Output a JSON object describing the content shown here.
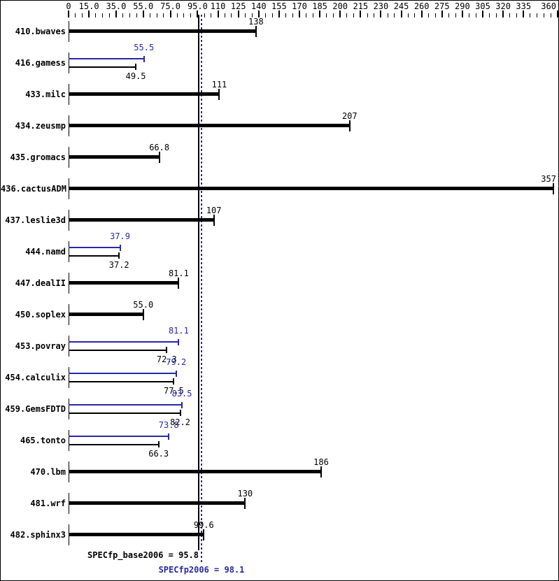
{
  "chart_data": {
    "type": "bar",
    "orientation": "horizontal",
    "legend_position": "none",
    "grid": false,
    "colors": {
      "base": "#000000",
      "peak": "#2828a8"
    },
    "x_axis": {
      "min": 0,
      "max": 360,
      "minor_step": 5,
      "labeled_ticks": [
        {
          "value": 0,
          "label": "0"
        },
        {
          "value": 15,
          "label": "15.0"
        },
        {
          "value": 35,
          "label": "35.0"
        },
        {
          "value": 55,
          "label": "55.0"
        },
        {
          "value": 75,
          "label": "75.0"
        },
        {
          "value": 95,
          "label": "95.0"
        },
        {
          "value": 110,
          "label": "110"
        },
        {
          "value": 125,
          "label": "125"
        },
        {
          "value": 140,
          "label": "140"
        },
        {
          "value": 155,
          "label": "155"
        },
        {
          "value": 170,
          "label": "170"
        },
        {
          "value": 185,
          "label": "185"
        },
        {
          "value": 200,
          "label": "200"
        },
        {
          "value": 215,
          "label": "215"
        },
        {
          "value": 230,
          "label": "230"
        },
        {
          "value": 245,
          "label": "245"
        },
        {
          "value": 260,
          "label": "260"
        },
        {
          "value": 275,
          "label": "275"
        },
        {
          "value": 290,
          "label": "290"
        },
        {
          "value": 305,
          "label": "305"
        },
        {
          "value": 320,
          "label": "320"
        },
        {
          "value": 335,
          "label": "335"
        },
        {
          "value": 360,
          "label": "360"
        }
      ]
    },
    "benchmarks": [
      {
        "name": "410.bwaves",
        "base": 138,
        "base_label": "138"
      },
      {
        "name": "416.gamess",
        "base": 49.5,
        "base_label": "49.5",
        "peak": 55.5,
        "peak_label": "55.5"
      },
      {
        "name": "433.milc",
        "base": 111,
        "base_label": "111"
      },
      {
        "name": "434.zeusmp",
        "base": 207,
        "base_label": "207"
      },
      {
        "name": "435.gromacs",
        "base": 66.8,
        "base_label": "66.8"
      },
      {
        "name": "436.cactusADM",
        "base": 357,
        "base_label": "357"
      },
      {
        "name": "437.leslie3d",
        "base": 107,
        "base_label": "107"
      },
      {
        "name": "444.namd",
        "base": 37.2,
        "base_label": "37.2",
        "peak": 37.9,
        "peak_label": "37.9"
      },
      {
        "name": "447.dealII",
        "base": 81.1,
        "base_label": "81.1"
      },
      {
        "name": "450.soplex",
        "base": 55.0,
        "base_label": "55.0"
      },
      {
        "name": "453.povray",
        "base": 72.3,
        "base_label": "72.3",
        "peak": 81.1,
        "peak_label": "81.1"
      },
      {
        "name": "454.calculix",
        "base": 77.5,
        "base_label": "77.5",
        "peak": 79.2,
        "peak_label": "79.2"
      },
      {
        "name": "459.GemsFDTD",
        "base": 82.2,
        "base_label": "82.2",
        "peak": 83.5,
        "peak_label": "83.5"
      },
      {
        "name": "465.tonto",
        "base": 66.3,
        "base_label": "66.3",
        "peak": 73.8,
        "peak_label": "73.8"
      },
      {
        "name": "470.lbm",
        "base": 186,
        "base_label": "186"
      },
      {
        "name": "481.wrf",
        "base": 130,
        "base_label": "130"
      },
      {
        "name": "482.sphinx3",
        "base": 99.6,
        "base_label": "99.6"
      }
    ],
    "reference_lines": [
      {
        "series": "base",
        "value": 95.8,
        "style": "solid",
        "color": "#000000"
      },
      {
        "series": "peak",
        "value": 98.1,
        "style": "dotted",
        "color": "#2828a8"
      }
    ],
    "summary": {
      "base": {
        "text": "SPECfp_base2006 = 95.8",
        "metric": "SPECfp_base2006",
        "value": 95.8
      },
      "peak": {
        "text": "SPECfp2006 = 98.1",
        "metric": "SPECfp2006",
        "value": 98.1
      }
    }
  }
}
